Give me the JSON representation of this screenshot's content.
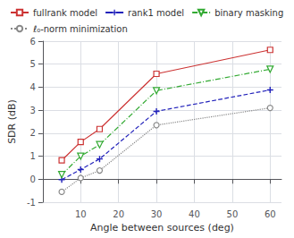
{
  "chart_data": {
    "type": "line",
    "xlabel": "Angle between sources (deg)",
    "ylabel": "SDR (dB)",
    "x": [
      5,
      10,
      15,
      30,
      60
    ],
    "series": [
      {
        "name": "fullrank model",
        "color": "#cc3333",
        "values": [
          0.82,
          1.62,
          2.18,
          4.58,
          5.62
        ],
        "marker": "square",
        "line_style": "solid"
      },
      {
        "name": "rank1 model",
        "color": "#2222bb",
        "values": [
          -0.02,
          0.42,
          0.88,
          2.95,
          3.88
        ],
        "marker": "plus",
        "line_style": "dashed"
      },
      {
        "name": "binary masking",
        "color": "#33aa33",
        "values": [
          0.2,
          1.0,
          1.5,
          3.85,
          4.78
        ],
        "marker": "triangle-down",
        "line_style": "dashdot"
      },
      {
        "name": "ℓ₀-norm minimization",
        "color": "#888888",
        "values": [
          -0.55,
          0.05,
          0.38,
          2.35,
          3.1
        ],
        "marker": "circle",
        "line_style": "dotted"
      }
    ],
    "xlim": [
      0,
      63
    ],
    "ylim": [
      -1,
      6
    ],
    "xticks": [
      10,
      20,
      30,
      40,
      50,
      60
    ],
    "yticks": [
      -1,
      0,
      1,
      2,
      3,
      4,
      5,
      6
    ],
    "grid": true,
    "legend": "upper left"
  }
}
